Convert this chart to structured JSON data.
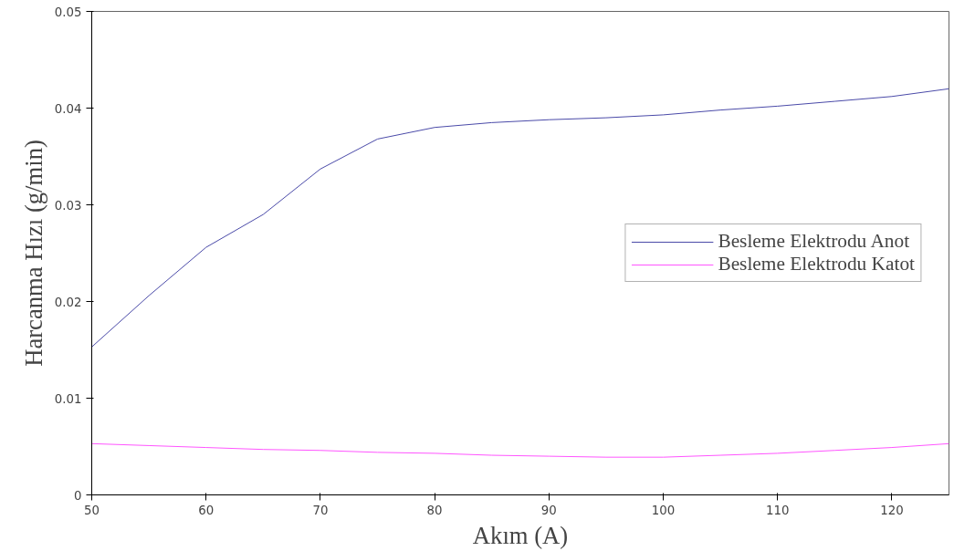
{
  "chart_data": {
    "type": "line",
    "xlabel": "Akım (A)",
    "ylabel": "Harcanma Hızı (g/min)",
    "x": [
      50,
      55,
      60,
      65,
      70,
      75,
      80,
      85,
      90,
      95,
      100,
      105,
      110,
      115,
      120,
      125
    ],
    "series": [
      {
        "name": "Besleme Elektrodu Anot",
        "color": "#4a4aa8",
        "values": [
          0.0153,
          0.0206,
          0.0256,
          0.029,
          0.0337,
          0.0368,
          0.038,
          0.0385,
          0.0388,
          0.039,
          0.0393,
          0.0398,
          0.0402,
          0.0407,
          0.0412,
          0.042
        ]
      },
      {
        "name": "Besleme Elektrodu Katot",
        "color": "#ff55ff",
        "values": [
          0.0053,
          0.0051,
          0.0049,
          0.0047,
          0.0046,
          0.0044,
          0.0043,
          0.0041,
          0.004,
          0.0039,
          0.0039,
          0.0041,
          0.0043,
          0.0046,
          0.0049,
          0.0053
        ]
      }
    ],
    "xlim": [
      50,
      125
    ],
    "ylim": [
      0,
      0.05
    ],
    "xticks": [
      50,
      60,
      70,
      80,
      90,
      100,
      110,
      120
    ],
    "yticks": [
      0,
      0.01,
      0.02,
      0.03,
      0.04,
      0.05
    ],
    "grid": false,
    "legend": "right",
    "marker": "none",
    "line_style": "solid"
  }
}
